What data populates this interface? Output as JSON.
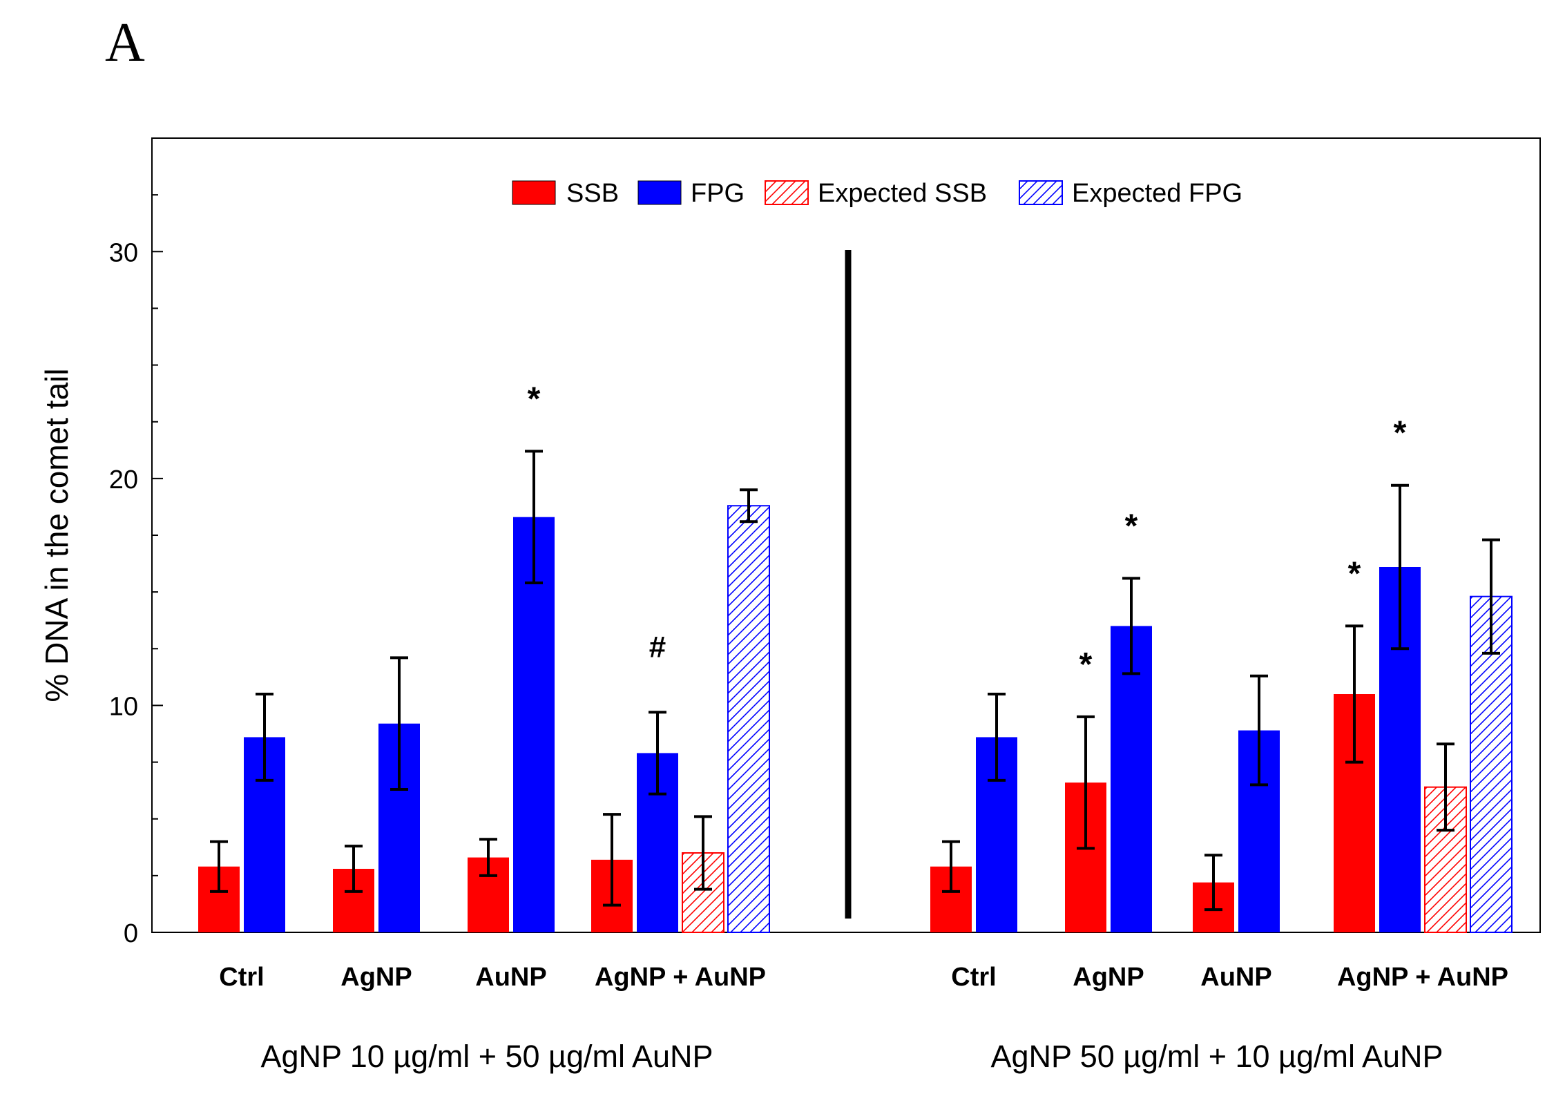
{
  "panel_label": "A",
  "chart_data": {
    "type": "bar",
    "ylabel": "% DNA in the comet tail",
    "ylim": [
      0,
      35
    ],
    "yticks": [
      0,
      10,
      20,
      30
    ],
    "legend_position": "top-center",
    "legend": [
      {
        "key": "ssb",
        "label": "SSB",
        "color": "#ff0000",
        "pattern": "solid"
      },
      {
        "key": "fpg",
        "label": "FPG",
        "color": "#0000ff",
        "pattern": "solid"
      },
      {
        "key": "exp_ssb",
        "label": "Expected SSB",
        "color": "#ff0000",
        "pattern": "hatched"
      },
      {
        "key": "exp_fpg",
        "label": "Expected FPG",
        "color": "#0000ff",
        "pattern": "hatched"
      }
    ],
    "groups": [
      {
        "label": "AgNP 10 µg/ml + 50 µg/ml AuNP",
        "categories": [
          {
            "label": "Ctrl",
            "bars": [
              {
                "series": "ssb",
                "value": 2.9,
                "error": 1.1
              },
              {
                "series": "fpg",
                "value": 8.6,
                "error": 1.9
              }
            ]
          },
          {
            "label": "AgNP",
            "bars": [
              {
                "series": "ssb",
                "value": 2.8,
                "error": 1.0
              },
              {
                "series": "fpg",
                "value": 9.2,
                "error": 2.9
              }
            ]
          },
          {
            "label": "AuNP",
            "bars": [
              {
                "series": "ssb",
                "value": 3.3,
                "error": 0.8
              },
              {
                "series": "fpg",
                "value": 18.3,
                "error": 2.9,
                "annotation": "*"
              }
            ]
          },
          {
            "label": "AgNP + AuNP",
            "bars": [
              {
                "series": "ssb",
                "value": 3.2,
                "error": 2.0
              },
              {
                "series": "fpg",
                "value": 7.9,
                "error": 1.8,
                "annotation": "#"
              },
              {
                "series": "exp_ssb",
                "value": 3.5,
                "error": 1.6
              },
              {
                "series": "exp_fpg",
                "value": 18.8,
                "error": 0.7
              }
            ]
          }
        ]
      },
      {
        "label": "AgNP 50 µg/ml + 10 µg/ml AuNP",
        "categories": [
          {
            "label": "Ctrl",
            "bars": [
              {
                "series": "ssb",
                "value": 2.9,
                "error": 1.1
              },
              {
                "series": "fpg",
                "value": 8.6,
                "error": 1.9
              }
            ]
          },
          {
            "label": "AgNP",
            "bars": [
              {
                "series": "ssb",
                "value": 6.6,
                "error": 2.9,
                "annotation": "*"
              },
              {
                "series": "fpg",
                "value": 13.5,
                "error": 2.1,
                "annotation": "*"
              }
            ]
          },
          {
            "label": "AuNP",
            "bars": [
              {
                "series": "ssb",
                "value": 2.2,
                "error": 1.2
              },
              {
                "series": "fpg",
                "value": 8.9,
                "error": 2.4
              }
            ]
          },
          {
            "label": "AgNP + AuNP",
            "bars": [
              {
                "series": "ssb",
                "value": 10.5,
                "error": 3.0,
                "annotation": "*"
              },
              {
                "series": "fpg",
                "value": 16.1,
                "error": 3.6,
                "annotation": "*"
              },
              {
                "series": "exp_ssb",
                "value": 6.4,
                "error": 1.9
              },
              {
                "series": "exp_fpg",
                "value": 14.8,
                "error": 2.5
              }
            ]
          }
        ]
      }
    ]
  }
}
